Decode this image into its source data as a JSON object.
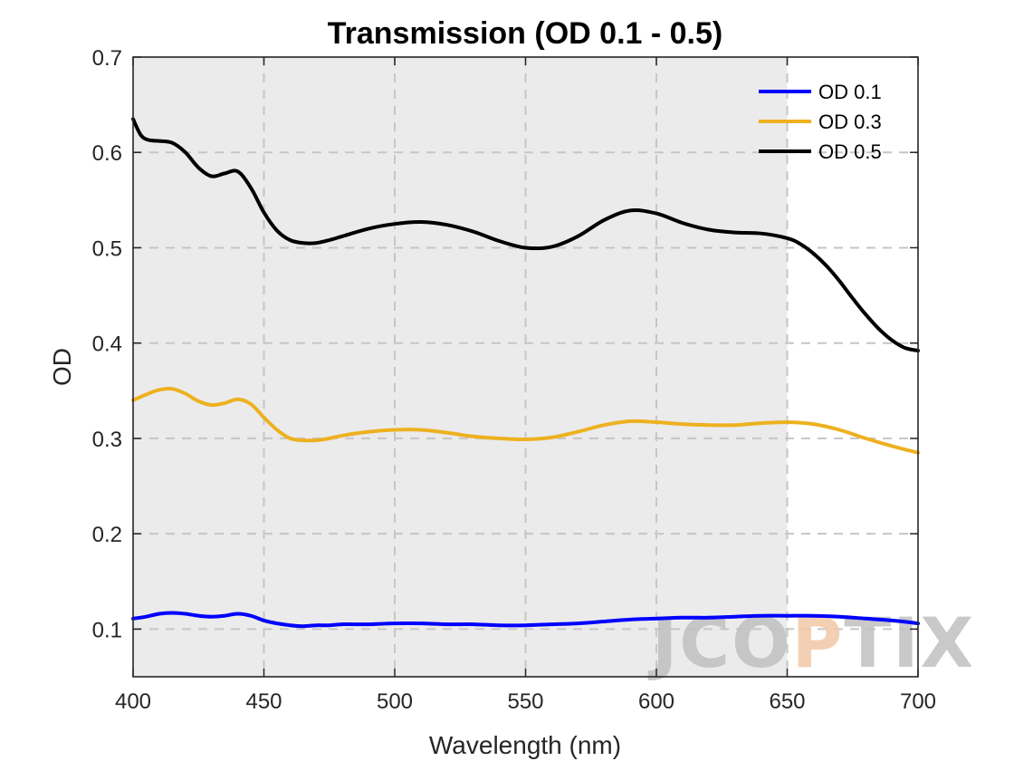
{
  "chart_data": {
    "type": "line",
    "title": "Transmission (OD 0.1 - 0.5)",
    "xlabel": "Wavelength (nm)",
    "ylabel": "OD",
    "xlim": [
      400,
      700
    ],
    "ylim": [
      0.05,
      0.7
    ],
    "xticks": [
      400,
      450,
      500,
      550,
      600,
      650,
      700
    ],
    "xtick_labels": [
      "400",
      "450",
      "500",
      "550",
      "600",
      "650",
      "700"
    ],
    "yticks": [
      0.1,
      0.2,
      0.3,
      0.4,
      0.5,
      0.6,
      0.7
    ],
    "ytick_labels": [
      "0.1",
      "0.2",
      "0.3",
      "0.4",
      "0.5",
      "0.6",
      "0.7"
    ],
    "grid": true,
    "legend_position": "top-right",
    "shaded_region": {
      "x": [
        400,
        650
      ],
      "color": "#ebebeb"
    },
    "series": [
      {
        "name": "OD 0.1",
        "color": "#0000ff",
        "x": [
          400,
          405,
          410,
          415,
          420,
          425,
          430,
          435,
          440,
          445,
          450,
          455,
          460,
          465,
          470,
          475,
          480,
          490,
          500,
          510,
          520,
          530,
          540,
          550,
          560,
          570,
          580,
          590,
          600,
          610,
          620,
          630,
          640,
          650,
          660,
          670,
          680,
          690,
          700
        ],
        "y": [
          0.111,
          0.113,
          0.116,
          0.117,
          0.116,
          0.114,
          0.113,
          0.114,
          0.116,
          0.114,
          0.109,
          0.106,
          0.104,
          0.103,
          0.104,
          0.104,
          0.105,
          0.105,
          0.106,
          0.106,
          0.105,
          0.105,
          0.104,
          0.104,
          0.105,
          0.106,
          0.108,
          0.11,
          0.111,
          0.112,
          0.112,
          0.113,
          0.114,
          0.114,
          0.114,
          0.113,
          0.111,
          0.109,
          0.106
        ]
      },
      {
        "name": "OD 0.3",
        "color": "#edb120",
        "x": [
          400,
          405,
          410,
          415,
          420,
          425,
          430,
          435,
          440,
          445,
          450,
          455,
          460,
          465,
          470,
          475,
          480,
          490,
          500,
          510,
          520,
          530,
          540,
          550,
          560,
          570,
          580,
          590,
          600,
          610,
          620,
          630,
          640,
          650,
          660,
          670,
          680,
          690,
          700
        ],
        "y": [
          0.34,
          0.346,
          0.351,
          0.352,
          0.347,
          0.339,
          0.335,
          0.337,
          0.341,
          0.336,
          0.322,
          0.309,
          0.3,
          0.298,
          0.298,
          0.3,
          0.303,
          0.307,
          0.309,
          0.309,
          0.306,
          0.302,
          0.3,
          0.299,
          0.301,
          0.307,
          0.314,
          0.318,
          0.317,
          0.315,
          0.314,
          0.314,
          0.316,
          0.317,
          0.315,
          0.309,
          0.3,
          0.292,
          0.285
        ]
      },
      {
        "name": "OD 0.5",
        "color": "#000000",
        "x": [
          400,
          403,
          406,
          410,
          415,
          420,
          425,
          430,
          435,
          440,
          445,
          450,
          455,
          460,
          465,
          470,
          475,
          480,
          490,
          500,
          510,
          520,
          530,
          540,
          550,
          560,
          570,
          580,
          590,
          600,
          610,
          620,
          630,
          640,
          650,
          655,
          660,
          665,
          670,
          675,
          680,
          685,
          690,
          695,
          700
        ],
        "y": [
          0.635,
          0.618,
          0.613,
          0.612,
          0.61,
          0.6,
          0.584,
          0.575,
          0.578,
          0.58,
          0.563,
          0.537,
          0.518,
          0.508,
          0.505,
          0.505,
          0.508,
          0.512,
          0.52,
          0.525,
          0.527,
          0.524,
          0.517,
          0.507,
          0.5,
          0.501,
          0.512,
          0.529,
          0.539,
          0.536,
          0.526,
          0.519,
          0.516,
          0.515,
          0.51,
          0.504,
          0.494,
          0.481,
          0.465,
          0.447,
          0.43,
          0.415,
          0.403,
          0.395,
          0.392
        ]
      }
    ]
  },
  "watermark": {
    "text": "JCOPTIX",
    "color": "#c0c0c0",
    "accent_color": "#f1c8a8"
  }
}
